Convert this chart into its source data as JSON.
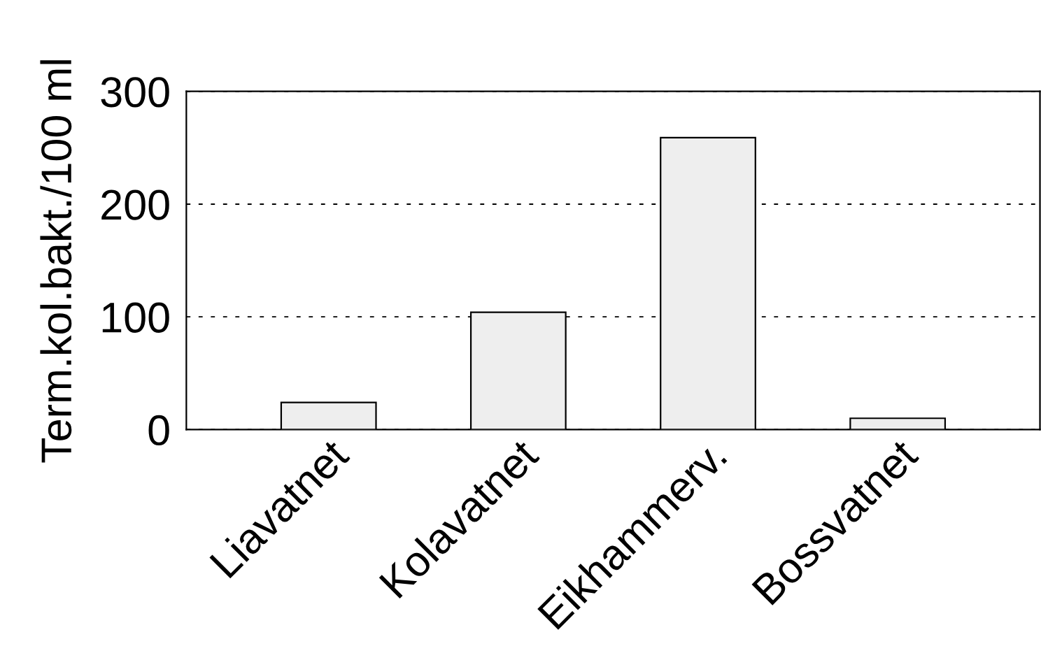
{
  "chart_data": {
    "type": "bar",
    "ylabel": "Term.kol.bakt./100 ml",
    "categories": [
      "Liavatnet",
      "Kolavatnet",
      "Eikhammerv.",
      "Bossvatnet"
    ],
    "values": [
      24,
      104,
      259,
      10
    ],
    "color": "#eeeeee",
    "ylim": [
      0,
      300
    ],
    "yticks": [
      0,
      100,
      200,
      300
    ],
    "grid": "y"
  }
}
